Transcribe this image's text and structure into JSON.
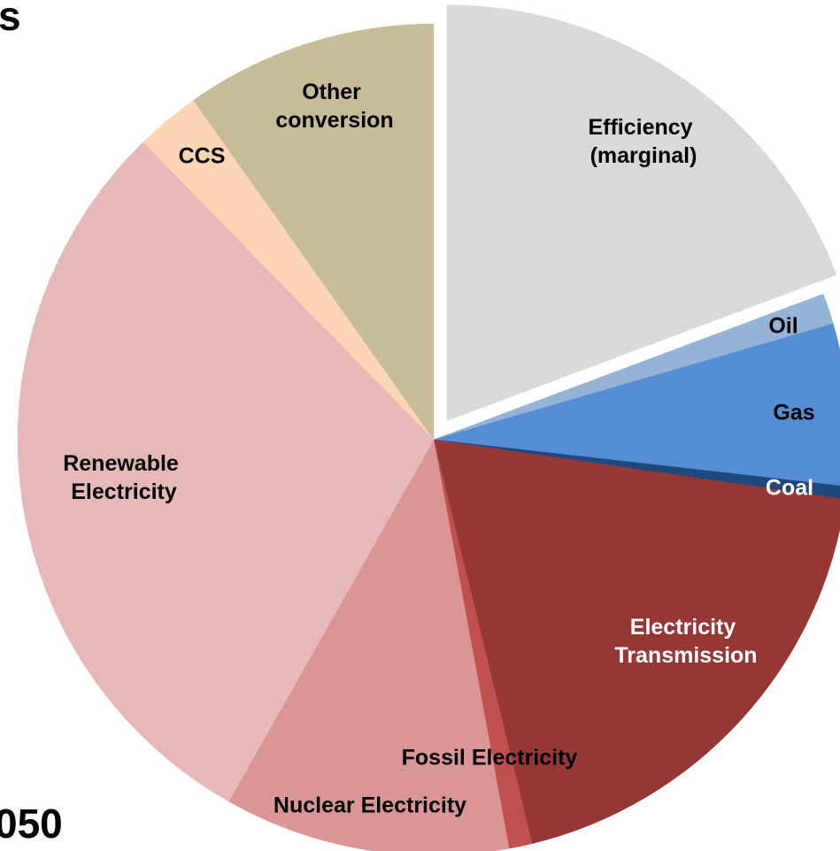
{
  "chart_data": {
    "type": "pie",
    "title": "s",
    "annotations": [
      "050"
    ],
    "categories": [
      "Efficiency (marginal)",
      "Oil",
      "Gas",
      "Coal",
      "Electricity Transmission",
      "Fossil Electricity",
      "Nuclear Electricity",
      "Renewable Electricity",
      "CCS",
      "Other conversion"
    ],
    "values": [
      19.3,
      1.2,
      6.3,
      0.5,
      18.9,
      0.9,
      11.1,
      29.5,
      2.5,
      9.8
    ],
    "colors": [
      "#d9d9d9",
      "#95b3d7",
      "#558ed5",
      "#1f497d",
      "#953735",
      "#c0504d",
      "#d99694",
      "#e6b9b8",
      "#fcd5b5",
      "#c4bd97"
    ],
    "exploded": [
      0
    ]
  }
}
